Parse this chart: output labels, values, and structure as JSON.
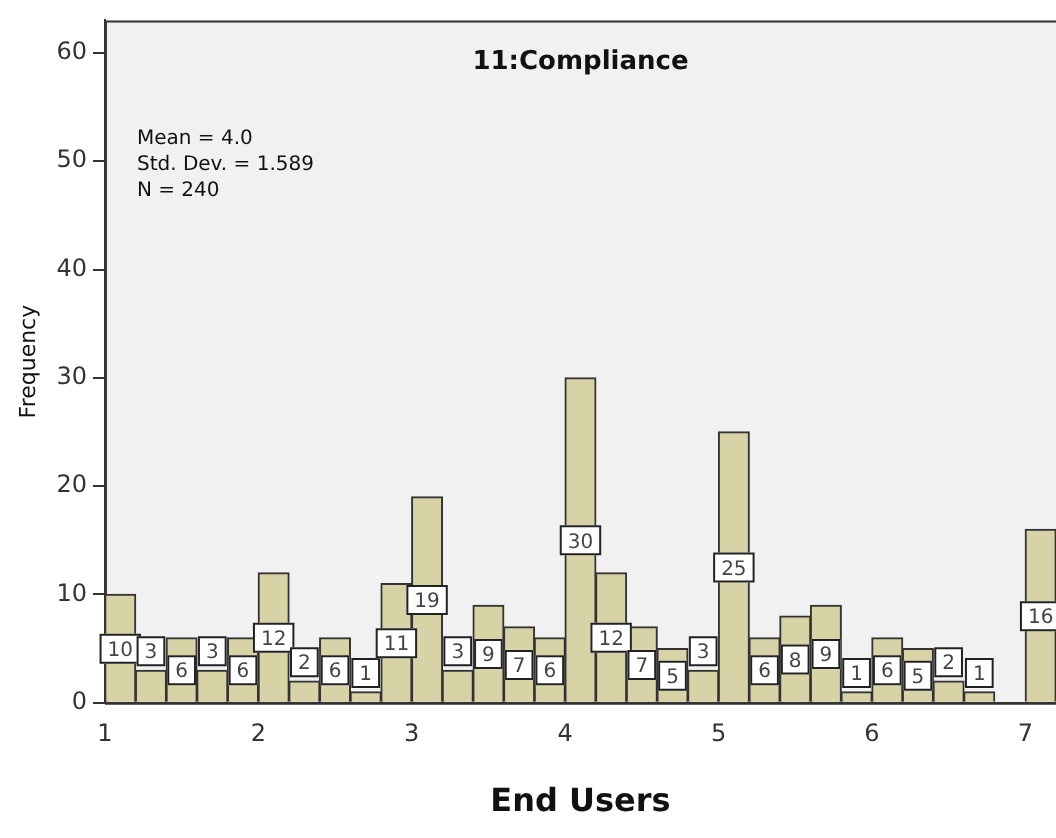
{
  "chart_data": {
    "type": "histogram",
    "title": "11:Compliance",
    "xlabel": "End Users",
    "ylabel": "Frequency",
    "annotations": [
      "Mean = 4.0",
      "Std. Dev. = 1.589",
      "N = 240"
    ],
    "bins": [
      1,
      1.2,
      1.4,
      1.6,
      1.8,
      2,
      2.2,
      2.4,
      2.6,
      2.8,
      3,
      3.2,
      3.4,
      3.6,
      3.8,
      4,
      4.2,
      4.4,
      4.6,
      4.8,
      5,
      5.2,
      5.4,
      5.6,
      5.8,
      6,
      6.2,
      6.4,
      6.6,
      6.8,
      7,
      7.2
    ],
    "values": [
      10,
      3,
      6,
      3,
      6,
      12,
      2,
      6,
      1,
      11,
      19,
      3,
      9,
      7,
      6,
      30,
      12,
      7,
      5,
      3,
      25,
      6,
      8,
      9,
      1,
      6,
      5,
      2,
      1,
      0,
      16
    ],
    "value_labels": [
      "10",
      "3",
      "6",
      "3",
      "6",
      "12",
      "2",
      "6",
      "1",
      "11",
      "19",
      "3",
      "9",
      "7",
      "6",
      "30",
      "12",
      "7",
      "5",
      "3",
      "25",
      "6",
      "8",
      "9",
      "1",
      "6",
      "5",
      "2",
      "1",
      null,
      "16"
    ],
    "color": "#d8d3a6",
    "xlim": [
      1,
      7.2
    ],
    "xticks": [
      1,
      2,
      3,
      4,
      5,
      6,
      7
    ],
    "ylim": [
      0,
      63
    ],
    "yticks": [
      0,
      10,
      20,
      30,
      40,
      50,
      60
    ],
    "grid": false,
    "legend": false
  }
}
